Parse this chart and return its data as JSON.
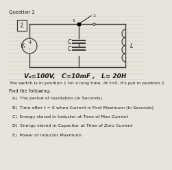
{
  "title": "Question 2",
  "circuit_label": "2.",
  "vs_label": "Vₛ",
  "values_line": "Vₛ=100V,   C=10mF ,   L= 20H",
  "switch_text": "The switch is in position 1 for a long time. At t=0, it's put in position 2.",
  "find_text": "Find the following:",
  "items": [
    "A)  The period of oscillation (In Seconds)",
    "B)  Time after t = 0 when Current is First Maximum (In Seconds)",
    "C)  Energy stored in Inductor at Time of Max Current",
    "D)  Energy stored in Capacitor at Time of Zero Current",
    "E)  Power of Inductor Maximum"
  ],
  "bg_color": "#e8e4dc",
  "line_color": "#3a3a3a",
  "text_color": "#1a1a1a",
  "paper_lines_color": "#c8c0b0"
}
